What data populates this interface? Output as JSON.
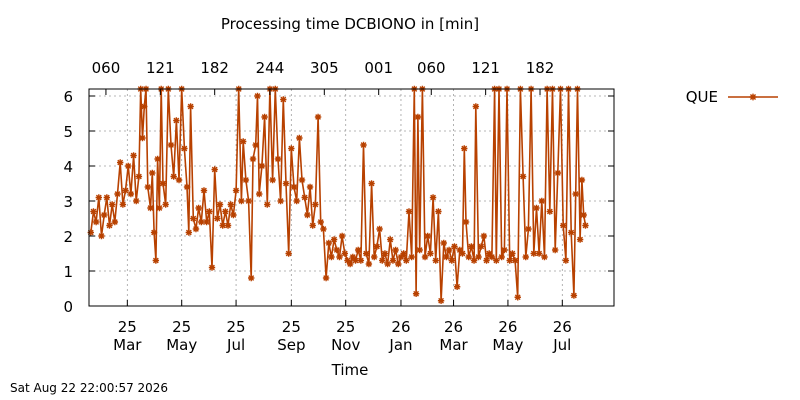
{
  "chart_data": {
    "type": "line",
    "title": "Processing time DCBIONO in [min]",
    "xlabel": "Time",
    "ylabel": "",
    "ylim": [
      0,
      6.2
    ],
    "yticks": [
      0,
      1,
      2,
      3,
      4,
      5,
      6
    ],
    "xlim": [
      "2025-02-10",
      "2026-09-22"
    ],
    "xticks": [
      {
        "date": "2025-03-25",
        "line1": "25",
        "line2": "Mar"
      },
      {
        "date": "2025-05-25",
        "line1": "25",
        "line2": "May"
      },
      {
        "date": "2025-07-25",
        "line1": "25",
        "line2": "Jul"
      },
      {
        "date": "2025-09-25",
        "line1": "25",
        "line2": "Sep"
      },
      {
        "date": "2025-11-25",
        "line1": "25",
        "line2": "Nov"
      },
      {
        "date": "2026-01-26",
        "line1": "26",
        "line2": "Jan"
      },
      {
        "date": "2026-03-26",
        "line1": "26",
        "line2": "Mar"
      },
      {
        "date": "2026-05-26",
        "line1": "26",
        "line2": "May"
      },
      {
        "date": "2026-07-26",
        "line1": "26",
        "line2": "Jul"
      }
    ],
    "x2ticks": [
      {
        "date": "2025-03-01",
        "label": "060"
      },
      {
        "date": "2025-05-01",
        "label": "121"
      },
      {
        "date": "2025-07-01",
        "label": "182"
      },
      {
        "date": "2025-09-01",
        "label": "244"
      },
      {
        "date": "2025-11-01",
        "label": "305"
      },
      {
        "date": "2026-01-01",
        "label": "001"
      },
      {
        "date": "2026-03-01",
        "label": "060"
      },
      {
        "date": "2026-05-01",
        "label": "121"
      },
      {
        "date": "2026-07-01",
        "label": "182"
      }
    ],
    "grid": true,
    "legend_position": "top-right",
    "series": [
      {
        "name": "QUE",
        "color": "#b84100",
        "marker": "asterisk",
        "points": [
          [
            "2025-02-12",
            2.1
          ],
          [
            "2025-02-15",
            2.7
          ],
          [
            "2025-02-18",
            2.4
          ],
          [
            "2025-02-21",
            3.1
          ],
          [
            "2025-02-24",
            2.0
          ],
          [
            "2025-02-27",
            2.6
          ],
          [
            "2025-03-02",
            3.1
          ],
          [
            "2025-03-05",
            2.3
          ],
          [
            "2025-03-08",
            2.9
          ],
          [
            "2025-03-11",
            2.4
          ],
          [
            "2025-03-14",
            3.2
          ],
          [
            "2025-03-17",
            4.1
          ],
          [
            "2025-03-20",
            2.9
          ],
          [
            "2025-03-23",
            3.3
          ],
          [
            "2025-03-26",
            4.0
          ],
          [
            "2025-03-29",
            3.2
          ],
          [
            "2025-04-01",
            4.3
          ],
          [
            "2025-04-04",
            3.0
          ],
          [
            "2025-04-07",
            3.7
          ],
          [
            "2025-04-09",
            6.2
          ],
          [
            "2025-04-11",
            4.8
          ],
          [
            "2025-04-13",
            5.7
          ],
          [
            "2025-04-15",
            6.2
          ],
          [
            "2025-04-17",
            3.4
          ],
          [
            "2025-04-20",
            2.8
          ],
          [
            "2025-04-22",
            3.8
          ],
          [
            "2025-04-24",
            2.1
          ],
          [
            "2025-04-26",
            1.3
          ],
          [
            "2025-04-28",
            4.2
          ],
          [
            "2025-04-30",
            2.8
          ],
          [
            "2025-05-02",
            6.2
          ],
          [
            "2025-05-04",
            3.5
          ],
          [
            "2025-05-07",
            2.9
          ],
          [
            "2025-05-10",
            6.2
          ],
          [
            "2025-05-13",
            4.6
          ],
          [
            "2025-05-16",
            3.7
          ],
          [
            "2025-05-19",
            5.3
          ],
          [
            "2025-05-22",
            3.6
          ],
          [
            "2025-05-25",
            6.2
          ],
          [
            "2025-05-28",
            4.5
          ],
          [
            "2025-05-31",
            3.4
          ],
          [
            "2025-06-02",
            2.1
          ],
          [
            "2025-06-04",
            5.7
          ],
          [
            "2025-06-07",
            2.5
          ],
          [
            "2025-06-10",
            2.2
          ],
          [
            "2025-06-13",
            2.8
          ],
          [
            "2025-06-16",
            2.4
          ],
          [
            "2025-06-19",
            3.3
          ],
          [
            "2025-06-22",
            2.4
          ],
          [
            "2025-06-25",
            2.7
          ],
          [
            "2025-06-28",
            1.1
          ],
          [
            "2025-07-01",
            3.9
          ],
          [
            "2025-07-04",
            2.5
          ],
          [
            "2025-07-07",
            2.9
          ],
          [
            "2025-07-10",
            2.3
          ],
          [
            "2025-07-13",
            2.7
          ],
          [
            "2025-07-16",
            2.3
          ],
          [
            "2025-07-19",
            2.9
          ],
          [
            "2025-07-22",
            2.6
          ],
          [
            "2025-07-25",
            3.3
          ],
          [
            "2025-07-28",
            6.2
          ],
          [
            "2025-07-31",
            3.0
          ],
          [
            "2025-08-02",
            4.7
          ],
          [
            "2025-08-05",
            3.6
          ],
          [
            "2025-08-08",
            3.0
          ],
          [
            "2025-08-11",
            0.8
          ],
          [
            "2025-08-13",
            4.2
          ],
          [
            "2025-08-16",
            4.6
          ],
          [
            "2025-08-18",
            6.0
          ],
          [
            "2025-08-20",
            3.2
          ],
          [
            "2025-08-23",
            4.0
          ],
          [
            "2025-08-26",
            5.4
          ],
          [
            "2025-08-29",
            2.9
          ],
          [
            "2025-09-01",
            6.2
          ],
          [
            "2025-09-04",
            3.6
          ],
          [
            "2025-09-07",
            6.2
          ],
          [
            "2025-09-10",
            4.2
          ],
          [
            "2025-09-13",
            3.0
          ],
          [
            "2025-09-16",
            5.9
          ],
          [
            "2025-09-19",
            3.5
          ],
          [
            "2025-09-22",
            1.5
          ],
          [
            "2025-09-25",
            4.5
          ],
          [
            "2025-09-28",
            3.4
          ],
          [
            "2025-10-01",
            3.0
          ],
          [
            "2025-10-04",
            4.8
          ],
          [
            "2025-10-07",
            3.6
          ],
          [
            "2025-10-10",
            3.1
          ],
          [
            "2025-10-13",
            2.6
          ],
          [
            "2025-10-16",
            3.4
          ],
          [
            "2025-10-19",
            2.3
          ],
          [
            "2025-10-22",
            2.9
          ],
          [
            "2025-10-25",
            5.4
          ],
          [
            "2025-10-28",
            2.4
          ],
          [
            "2025-10-31",
            2.2
          ],
          [
            "2025-11-03",
            0.8
          ],
          [
            "2025-11-06",
            1.8
          ],
          [
            "2025-11-09",
            1.4
          ],
          [
            "2025-11-12",
            1.9
          ],
          [
            "2025-11-15",
            1.6
          ],
          [
            "2025-11-18",
            1.4
          ],
          [
            "2025-11-21",
            2.0
          ],
          [
            "2025-11-24",
            1.5
          ],
          [
            "2025-11-27",
            1.3
          ],
          [
            "2025-11-30",
            1.2
          ],
          [
            "2025-12-03",
            1.4
          ],
          [
            "2025-12-06",
            1.3
          ],
          [
            "2025-12-09",
            1.6
          ],
          [
            "2025-12-12",
            1.3
          ],
          [
            "2025-12-15",
            4.6
          ],
          [
            "2025-12-18",
            1.5
          ],
          [
            "2025-12-21",
            1.2
          ],
          [
            "2025-12-24",
            3.5
          ],
          [
            "2025-12-27",
            1.4
          ],
          [
            "2025-12-30",
            1.7
          ],
          [
            "2026-01-02",
            2.2
          ],
          [
            "2026-01-05",
            1.3
          ],
          [
            "2026-01-08",
            1.5
          ],
          [
            "2026-01-11",
            1.2
          ],
          [
            "2026-01-14",
            1.9
          ],
          [
            "2026-01-17",
            1.3
          ],
          [
            "2026-01-20",
            1.6
          ],
          [
            "2026-01-23",
            1.2
          ],
          [
            "2026-01-26",
            1.4
          ],
          [
            "2026-01-29",
            1.5
          ],
          [
            "2026-02-01",
            1.3
          ],
          [
            "2026-02-04",
            2.7
          ],
          [
            "2026-02-07",
            1.4
          ],
          [
            "2026-02-10",
            6.2
          ],
          [
            "2026-02-12",
            0.35
          ],
          [
            "2026-02-14",
            5.4
          ],
          [
            "2026-02-16",
            1.6
          ],
          [
            "2026-02-19",
            6.2
          ],
          [
            "2026-02-22",
            1.4
          ],
          [
            "2026-02-25",
            2.0
          ],
          [
            "2026-02-28",
            1.5
          ],
          [
            "2026-03-03",
            3.1
          ],
          [
            "2026-03-06",
            1.3
          ],
          [
            "2026-03-09",
            2.7
          ],
          [
            "2026-03-12",
            0.15
          ],
          [
            "2026-03-15",
            1.8
          ],
          [
            "2026-03-18",
            1.4
          ],
          [
            "2026-03-21",
            1.6
          ],
          [
            "2026-03-24",
            1.3
          ],
          [
            "2026-03-27",
            1.7
          ],
          [
            "2026-03-30",
            0.55
          ],
          [
            "2026-04-02",
            1.6
          ],
          [
            "2026-04-05",
            1.5
          ],
          [
            "2026-04-07",
            4.5
          ],
          [
            "2026-04-09",
            2.4
          ],
          [
            "2026-04-12",
            1.4
          ],
          [
            "2026-04-15",
            1.7
          ],
          [
            "2026-04-18",
            1.3
          ],
          [
            "2026-04-20",
            5.7
          ],
          [
            "2026-04-23",
            1.4
          ],
          [
            "2026-04-26",
            1.7
          ],
          [
            "2026-04-29",
            2.0
          ],
          [
            "2026-05-02",
            1.3
          ],
          [
            "2026-05-05",
            1.5
          ],
          [
            "2026-05-08",
            1.4
          ],
          [
            "2026-05-11",
            6.2
          ],
          [
            "2026-05-13",
            1.3
          ],
          [
            "2026-05-16",
            6.2
          ],
          [
            "2026-05-19",
            1.4
          ],
          [
            "2026-05-22",
            1.6
          ],
          [
            "2026-05-25",
            6.2
          ],
          [
            "2026-05-28",
            1.3
          ],
          [
            "2026-05-31",
            1.5
          ],
          [
            "2026-06-03",
            1.3
          ],
          [
            "2026-06-06",
            0.25
          ],
          [
            "2026-06-09",
            6.2
          ],
          [
            "2026-06-12",
            3.7
          ],
          [
            "2026-06-15",
            1.4
          ],
          [
            "2026-06-18",
            2.2
          ],
          [
            "2026-06-21",
            6.2
          ],
          [
            "2026-06-24",
            1.5
          ],
          [
            "2026-06-27",
            2.8
          ],
          [
            "2026-06-30",
            1.5
          ],
          [
            "2026-07-03",
            3.0
          ],
          [
            "2026-07-06",
            1.4
          ],
          [
            "2026-07-09",
            6.2
          ],
          [
            "2026-07-12",
            2.7
          ],
          [
            "2026-07-15",
            6.2
          ],
          [
            "2026-07-18",
            1.6
          ],
          [
            "2026-07-21",
            3.8
          ],
          [
            "2026-07-24",
            6.2
          ],
          [
            "2026-07-27",
            2.3
          ],
          [
            "2026-07-30",
            1.3
          ],
          [
            "2026-08-02",
            6.2
          ],
          [
            "2026-08-05",
            2.1
          ],
          [
            "2026-08-08",
            0.3
          ],
          [
            "2026-08-10",
            3.2
          ],
          [
            "2026-08-12",
            6.2
          ],
          [
            "2026-08-15",
            1.9
          ],
          [
            "2026-08-17",
            3.6
          ],
          [
            "2026-08-19",
            2.6
          ],
          [
            "2026-08-21",
            2.3
          ]
        ]
      }
    ]
  },
  "footer": {
    "timestamp": "Sat Aug 22 22:00:57 2026"
  }
}
